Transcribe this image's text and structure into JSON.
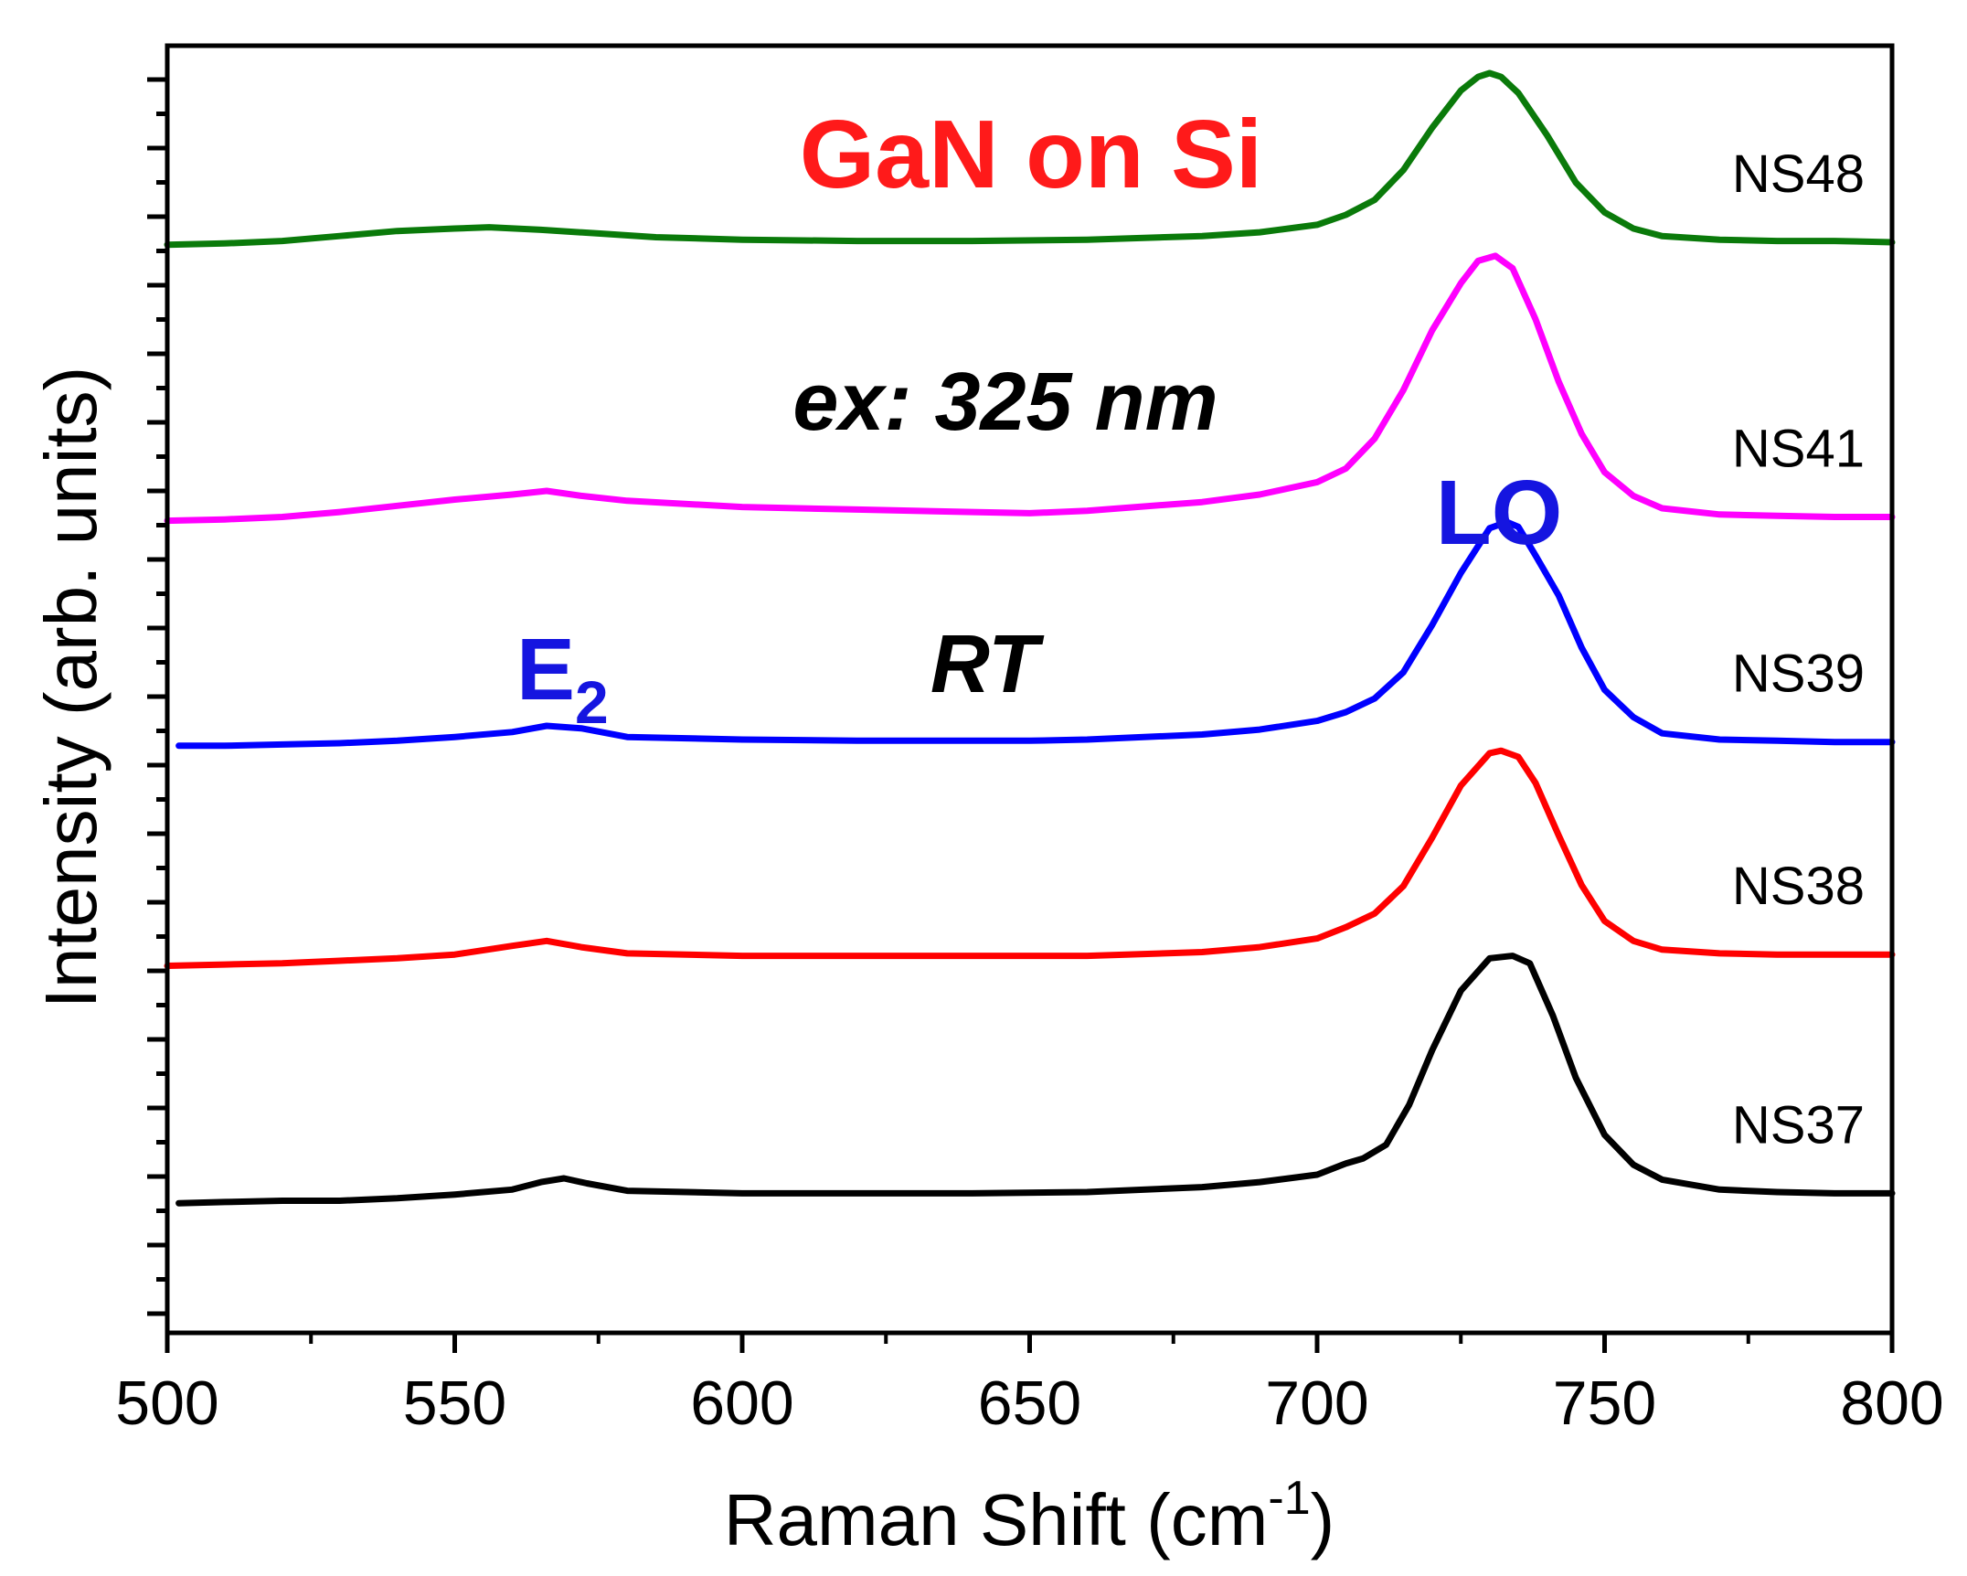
{
  "chart_data": {
    "type": "line",
    "title": "GaN on Si",
    "xlabel": "Raman Shift (cm",
    "xlabel_sup": "-1",
    "xlabel_end": ")",
    "ylabel": "Intensity (arb. units)",
    "xlim": [
      500,
      800
    ],
    "ylim": [
      0,
      100
    ],
    "x_ticks": [
      500,
      550,
      600,
      650,
      700,
      750,
      800
    ],
    "x_tick_labels": [
      "500",
      "550",
      "600",
      "650",
      "700",
      "750",
      "800"
    ],
    "grid": false,
    "annotations": {
      "title": "GaN on Si",
      "excitation": "ex: 325 nm",
      "temperature": "RT",
      "e2_base": "E",
      "e2_sub": "2",
      "lo": "LO"
    },
    "series": [
      {
        "name": "NS48",
        "color": "#0a7a0a",
        "x": [
          500,
          510,
          520,
          530,
          540,
          550,
          556,
          565,
          575,
          585,
          600,
          620,
          640,
          660,
          680,
          690,
          700,
          705,
          710,
          715,
          720,
          725,
          728,
          730,
          732,
          735,
          740,
          745,
          750,
          755,
          760,
          770,
          780,
          790,
          800
        ],
        "y": [
          86.2,
          86.3,
          86.5,
          86.9,
          87.3,
          87.5,
          87.6,
          87.4,
          87.1,
          86.8,
          86.6,
          86.5,
          86.5,
          86.6,
          86.9,
          87.2,
          87.8,
          88.6,
          89.8,
          92.2,
          95.6,
          98.6,
          99.7,
          100.0,
          99.7,
          98.4,
          95.0,
          91.2,
          88.8,
          87.5,
          86.9,
          86.6,
          86.5,
          86.5,
          86.4
        ]
      },
      {
        "name": "NS41",
        "color": "#ff00ff",
        "x": [
          500,
          510,
          520,
          530,
          540,
          550,
          560,
          566,
          572,
          580,
          600,
          620,
          640,
          650,
          660,
          680,
          690,
          700,
          705,
          710,
          715,
          720,
          725,
          728,
          731,
          734,
          738,
          742,
          746,
          750,
          755,
          760,
          770,
          780,
          790,
          800
        ],
        "y": [
          64.0,
          64.1,
          64.3,
          64.7,
          65.2,
          65.7,
          66.1,
          66.4,
          66.0,
          65.6,
          65.1,
          64.9,
          64.7,
          64.6,
          64.8,
          65.5,
          66.1,
          67.1,
          68.2,
          70.6,
          74.5,
          79.3,
          83.1,
          84.9,
          85.3,
          84.3,
          80.2,
          75.2,
          71.0,
          67.9,
          66.0,
          65.0,
          64.5,
          64.4,
          64.3,
          64.3
        ]
      },
      {
        "name": "NS39",
        "color": "#0000ff",
        "x": [
          502,
          510,
          520,
          530,
          540,
          550,
          560,
          566,
          572,
          580,
          600,
          620,
          640,
          650,
          660,
          680,
          690,
          700,
          705,
          710,
          715,
          720,
          725,
          730,
          733,
          735,
          738,
          742,
          746,
          750,
          755,
          760,
          770,
          780,
          790,
          800
        ],
        "y": [
          45.9,
          45.9,
          46.0,
          46.1,
          46.3,
          46.6,
          47.0,
          47.5,
          47.3,
          46.6,
          46.4,
          46.3,
          46.3,
          46.3,
          46.4,
          46.8,
          47.2,
          47.9,
          48.6,
          49.7,
          51.8,
          55.6,
          59.8,
          63.4,
          63.9,
          63.5,
          61.2,
          58.0,
          53.8,
          50.4,
          48.2,
          46.9,
          46.4,
          46.3,
          46.2,
          46.2
        ]
      },
      {
        "name": "NS38",
        "color": "#ff0000",
        "x": [
          500,
          510,
          520,
          530,
          540,
          550,
          560,
          566,
          572,
          580,
          600,
          620,
          640,
          650,
          660,
          680,
          690,
          700,
          705,
          710,
          715,
          720,
          725,
          730,
          732,
          735,
          738,
          742,
          746,
          750,
          755,
          760,
          770,
          780,
          790,
          800
        ],
        "y": [
          28.2,
          28.3,
          28.4,
          28.6,
          28.8,
          29.1,
          29.8,
          30.2,
          29.7,
          29.2,
          29.0,
          29.0,
          29.0,
          29.0,
          29.0,
          29.3,
          29.7,
          30.4,
          31.3,
          32.4,
          34.6,
          38.5,
          42.7,
          45.3,
          45.5,
          45.0,
          42.9,
          38.7,
          34.7,
          31.8,
          30.2,
          29.5,
          29.2,
          29.1,
          29.1,
          29.1
        ]
      },
      {
        "name": "NS37",
        "color": "#000000",
        "x": [
          502,
          510,
          520,
          530,
          540,
          550,
          560,
          565,
          569,
          573,
          580,
          600,
          620,
          640,
          660,
          680,
          690,
          700,
          705,
          708,
          712,
          716,
          720,
          725,
          730,
          734,
          737,
          741,
          745,
          750,
          755,
          760,
          770,
          780,
          790,
          800
        ],
        "y": [
          9.1,
          9.2,
          9.3,
          9.3,
          9.5,
          9.8,
          10.2,
          10.8,
          11.1,
          10.7,
          10.1,
          9.9,
          9.9,
          9.9,
          10.0,
          10.4,
          10.8,
          11.4,
          12.3,
          12.7,
          13.8,
          17.0,
          21.4,
          26.2,
          28.8,
          29.0,
          28.4,
          24.2,
          19.2,
          14.6,
          12.2,
          11.0,
          10.2,
          10.0,
          9.9,
          9.9
        ]
      }
    ]
  }
}
